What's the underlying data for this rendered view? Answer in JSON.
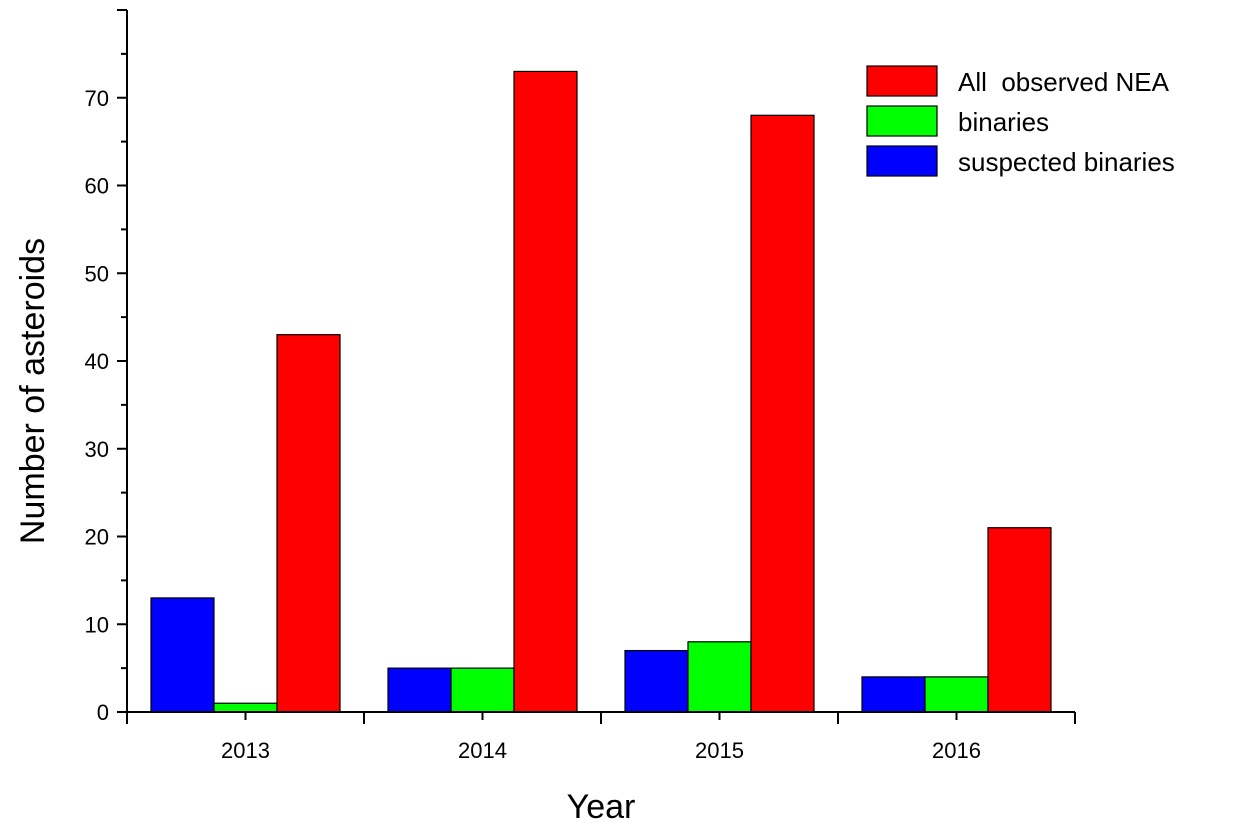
{
  "chart_data": {
    "type": "bar",
    "title": "",
    "xlabel": "Year",
    "ylabel": "Number of asteroids",
    "categories": [
      "2013",
      "2014",
      "2015",
      "2016"
    ],
    "series": [
      {
        "name": "suspected binaries",
        "color": "#0000ff",
        "values": [
          13,
          5,
          7,
          4
        ]
      },
      {
        "name": "binaries",
        "color": "#00ff00",
        "values": [
          1,
          5,
          8,
          4
        ]
      },
      {
        "name": "All  observed NEA",
        "color": "#ff0000",
        "values": [
          43,
          73,
          68,
          21
        ]
      }
    ],
    "legend_order": [
      2,
      1,
      0
    ],
    "ylim": [
      0,
      80
    ],
    "yticks": [
      0,
      10,
      20,
      30,
      40,
      50,
      60,
      70
    ],
    "grid": false,
    "legend_position": "top-right"
  }
}
